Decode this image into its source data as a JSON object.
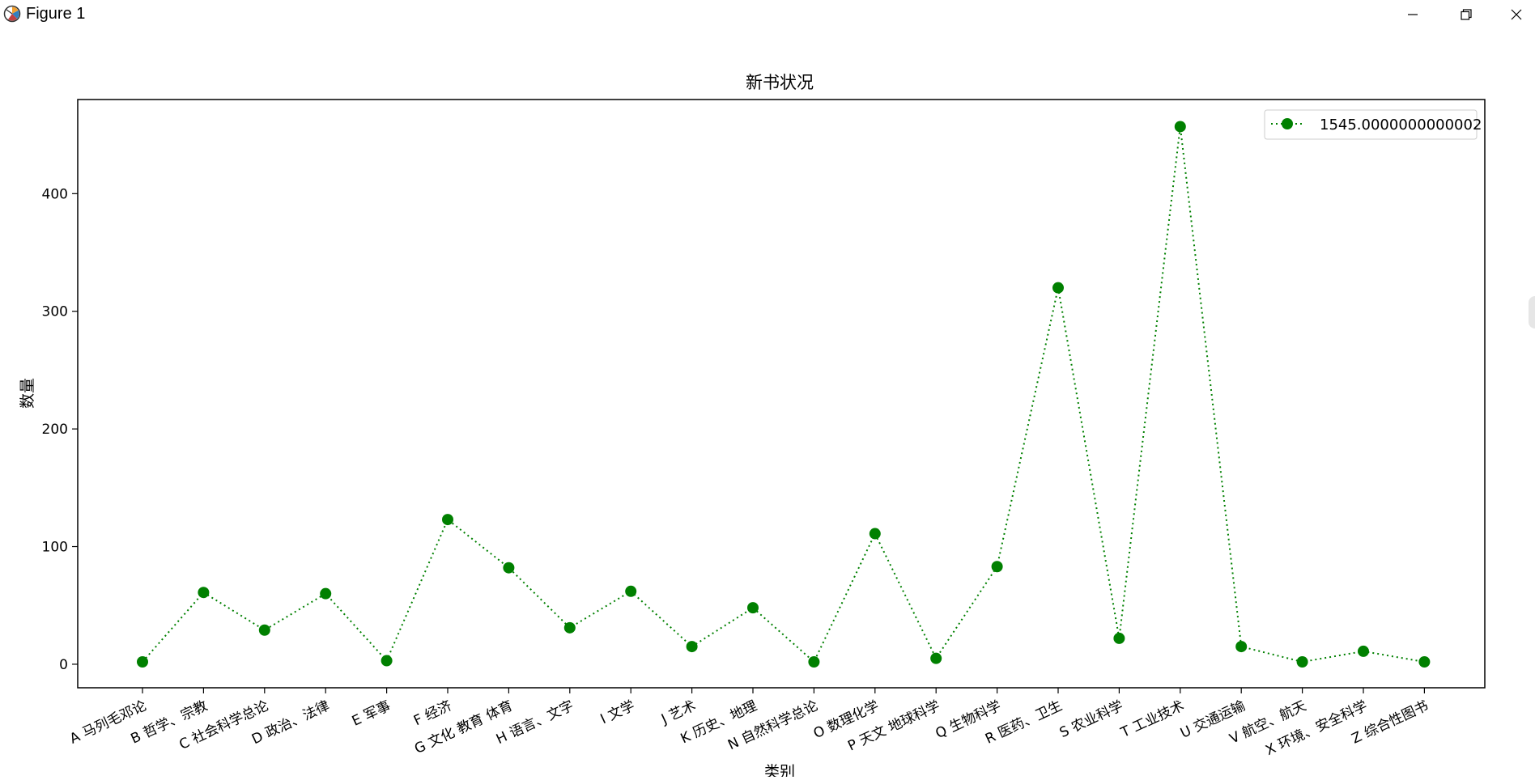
{
  "window": {
    "title": "Figure 1",
    "icons": {
      "app": "matplotlib-icon",
      "minimize": "minimize-icon",
      "maximize": "restore-icon",
      "close": "close-icon"
    }
  },
  "chart_data": {
    "type": "line",
    "title": "新书状况",
    "xlabel": "类别",
    "ylabel": "数量",
    "categories": [
      "A 马列毛邓论",
      "B 哲学、宗教",
      "C 社会科学总论",
      "D 政治、法律",
      "E 军事",
      "F 经济",
      "G 文化 教育 体育",
      "H 语言、文字",
      "I 文学",
      "J 艺术",
      "K 历史、地理",
      "N 自然科学总论",
      "O 数理化学",
      "P 天文 地球科学",
      "Q 生物科学",
      "R 医药、卫生",
      "S 农业科学",
      "T 工业技术",
      "U 交通运输",
      "V 航空、航天",
      "X 环境、安全科学",
      "Z 综合性图书"
    ],
    "series": [
      {
        "name": "1545.0000000000002",
        "values": [
          2,
          61,
          29,
          60,
          3,
          123,
          82,
          31,
          62,
          15,
          48,
          2,
          111,
          5,
          83,
          320,
          22,
          457,
          15,
          2,
          11,
          2
        ],
        "color": "#008000",
        "line_style": "dotted",
        "marker": "circle"
      }
    ],
    "yticks": [
      0,
      100,
      200,
      300,
      400
    ],
    "ylim": [
      -20,
      480
    ],
    "legend_position": "top-right",
    "grid": false
  }
}
